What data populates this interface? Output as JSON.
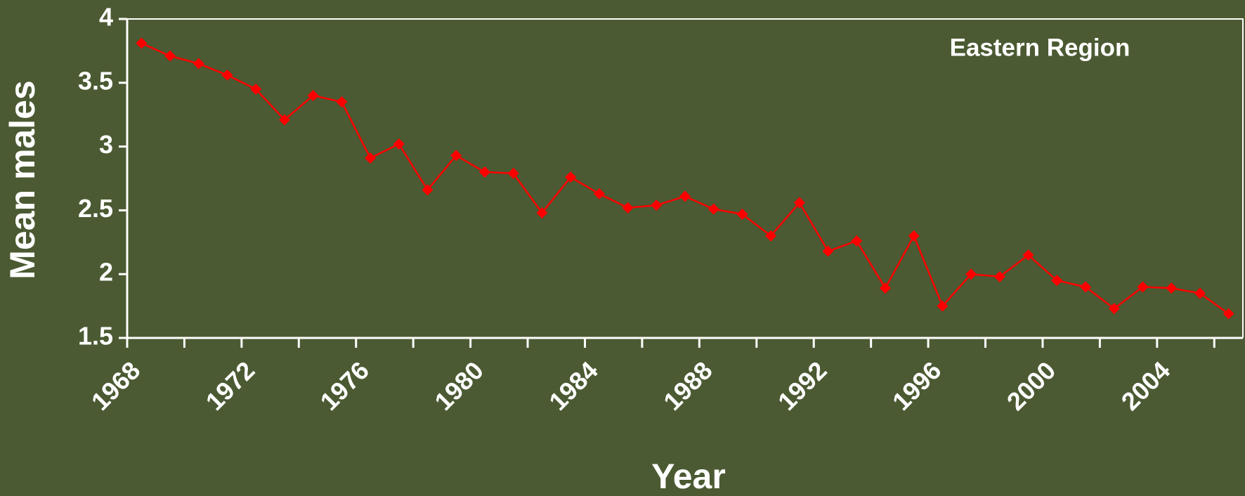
{
  "chart_data": {
    "type": "line",
    "annotation": "Eastern Region",
    "xlabel": "Year",
    "ylabel": "Mean males",
    "x": [
      1968.5,
      1969.5,
      1970.5,
      1971.5,
      1972.5,
      1973.5,
      1974.5,
      1975.5,
      1976.5,
      1977.5,
      1978.5,
      1979.5,
      1980.5,
      1981.5,
      1982.5,
      1983.5,
      1984.5,
      1985.5,
      1986.5,
      1987.5,
      1988.5,
      1989.5,
      1990.5,
      1991.5,
      1992.5,
      1993.5,
      1994.5,
      1995.5,
      1996.5,
      1997.5,
      1998.5,
      1999.5,
      2000.5,
      2001.5,
      2002.5,
      2003.5,
      2004.5,
      2005.5,
      2006.5
    ],
    "series": [
      {
        "name": "Mean males",
        "color": "#ff0000",
        "values": [
          3.81,
          3.71,
          3.65,
          3.56,
          3.45,
          3.21,
          3.4,
          3.35,
          2.91,
          3.02,
          2.66,
          2.93,
          2.8,
          2.79,
          2.48,
          2.76,
          2.63,
          2.52,
          2.54,
          2.61,
          2.51,
          2.47,
          2.3,
          2.56,
          2.18,
          2.26,
          1.89,
          2.3,
          1.75,
          2.0,
          1.98,
          2.15,
          1.95,
          1.9,
          1.73,
          1.9,
          1.89,
          1.85,
          1.69
        ]
      }
    ],
    "xlim": [
      1968,
      2007
    ],
    "xticks": [
      1968,
      1972,
      1976,
      1980,
      1984,
      1988,
      1992,
      1996,
      2000,
      2004
    ],
    "xminorticks": [
      1970,
      1974,
      1978,
      1982,
      1986,
      1990,
      1994,
      1998,
      2002,
      2006
    ],
    "ylim": [
      1.5,
      4
    ],
    "yticks": [
      1.5,
      2,
      2.5,
      3,
      3.5,
      4
    ],
    "grid": false
  }
}
